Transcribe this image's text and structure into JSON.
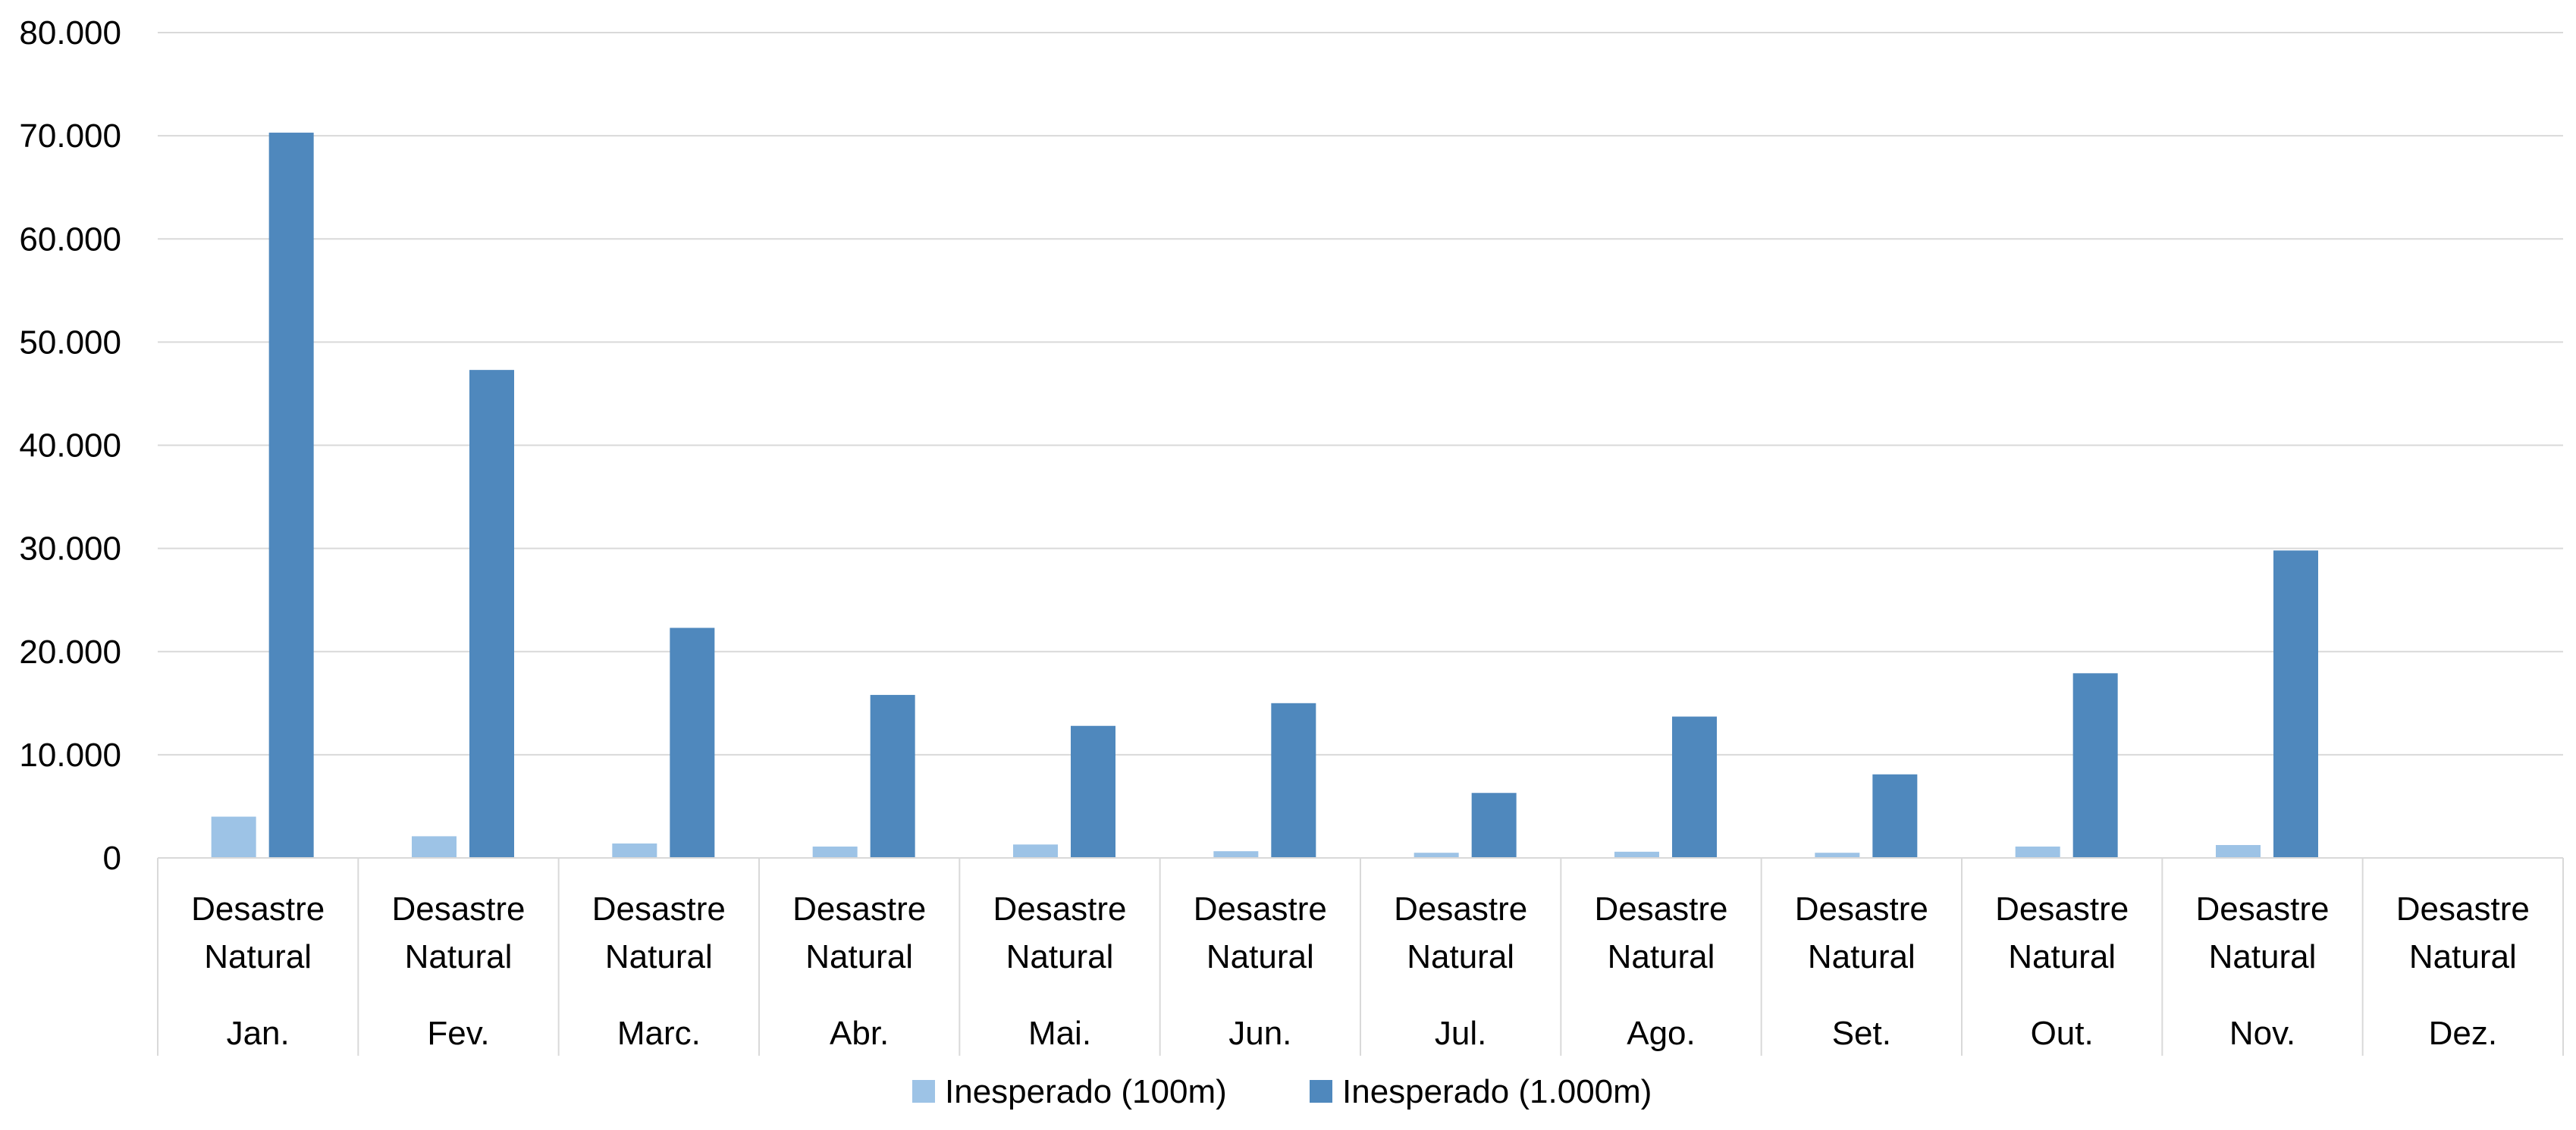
{
  "chart_data": {
    "type": "bar",
    "categories": [
      {
        "group": "Desastre Natural",
        "month": "Jan."
      },
      {
        "group": "Desastre Natural",
        "month": "Fev."
      },
      {
        "group": "Desastre Natural",
        "month": "Marc."
      },
      {
        "group": "Desastre Natural",
        "month": "Abr."
      },
      {
        "group": "Desastre Natural",
        "month": "Mai."
      },
      {
        "group": "Desastre Natural",
        "month": "Jun."
      },
      {
        "group": "Desastre Natural",
        "month": "Jul."
      },
      {
        "group": "Desastre Natural",
        "month": "Ago."
      },
      {
        "group": "Desastre Natural",
        "month": "Set."
      },
      {
        "group": "Desastre Natural",
        "month": "Out."
      },
      {
        "group": "Desastre Natural",
        "month": "Nov."
      },
      {
        "group": "Desastre Natural",
        "month": "Dez."
      }
    ],
    "series": [
      {
        "name": "Inesperado (100m)",
        "color": "#9dc3e6",
        "values": [
          4000,
          2100,
          1400,
          1100,
          1300,
          650,
          500,
          600,
          500,
          1100,
          1250,
          0
        ]
      },
      {
        "name": "Inesperado (1.000m)",
        "color": "#4f88bd",
        "values": [
          70300,
          47300,
          22300,
          15800,
          12800,
          15000,
          6300,
          13700,
          8100,
          17900,
          29800,
          0
        ]
      }
    ],
    "y_ticks": [
      "0",
      "10.000",
      "20.000",
      "30.000",
      "40.000",
      "50.000",
      "60.000",
      "70.000",
      "80.000"
    ],
    "ylim": [
      0,
      80000
    ],
    "grid": true,
    "legend_position": "bottom"
  }
}
